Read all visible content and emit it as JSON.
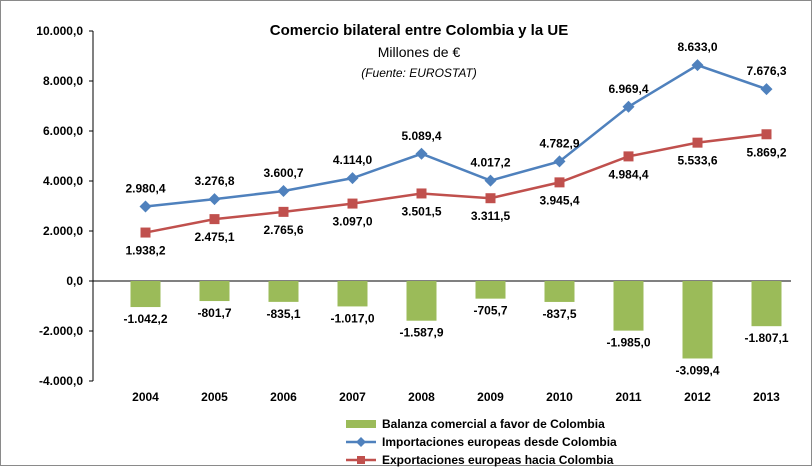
{
  "chart_data": {
    "type": "bar+line",
    "title": "Comercio bilateral entre Colombia y la UE",
    "subtitle": "Millones de €",
    "source": "(Fuente: EUROSTAT)",
    "categories": [
      "2004",
      "2005",
      "2006",
      "2007",
      "2008",
      "2009",
      "2010",
      "2011",
      "2012",
      "2013"
    ],
    "ylim": [
      -4000,
      10000
    ],
    "y_ticks": [
      {
        "value": 10000,
        "label": "10.000,0"
      },
      {
        "value": 8000,
        "label": "8.000,0"
      },
      {
        "value": 6000,
        "label": "6.000,0"
      },
      {
        "value": 4000,
        "label": "4.000,0"
      },
      {
        "value": 2000,
        "label": "2.000,0"
      },
      {
        "value": 0,
        "label": "0,0"
      },
      {
        "value": -2000,
        "label": "-2.000,0"
      },
      {
        "value": -4000,
        "label": "-4.000,0"
      }
    ],
    "grid": false,
    "legend_position": "bottom",
    "series": [
      {
        "name": "Balanza comercial a favor de Colombia",
        "type": "bar",
        "color": "#9bbb59",
        "values": [
          -1042.2,
          -801.7,
          -835.1,
          -1017.0,
          -1587.9,
          -705.7,
          -837.5,
          -1985.0,
          -3099.4,
          -1807.1
        ],
        "labels": [
          "-1.042,2",
          "-801,7",
          "-835,1",
          "-1.017,0",
          "-1.587,9",
          "-705,7",
          "-837,5",
          "-1.985,0",
          "-3.099,4",
          "-1.807,1"
        ]
      },
      {
        "name": "Importaciones europeas desde Colombia",
        "type": "line",
        "marker": "diamond",
        "color": "#4f81bd",
        "values": [
          2980.4,
          3276.8,
          3600.7,
          4114.0,
          5089.4,
          4017.2,
          4782.9,
          6969.4,
          8633.0,
          7676.3
        ],
        "labels": [
          "2.980,4",
          "3.276,8",
          "3.600,7",
          "4.114,0",
          "5.089,4",
          "4.017,2",
          "4.782,9",
          "6.969,4",
          "8.633,0",
          "7.676,3"
        ]
      },
      {
        "name": "Exportaciones europeas hacia Colombia",
        "type": "line",
        "marker": "square",
        "color": "#c0504d",
        "values": [
          1938.2,
          2475.1,
          2765.6,
          3097.0,
          3501.5,
          3311.5,
          3945.4,
          4984.4,
          5533.6,
          5869.2
        ],
        "labels": [
          "1.938,2",
          "2.475,1",
          "2.765,6",
          "3.097,0",
          "3.501,5",
          "3.311,5",
          "3.945,4",
          "4.984,4",
          "5.533,6",
          "5.869,2"
        ]
      }
    ]
  }
}
